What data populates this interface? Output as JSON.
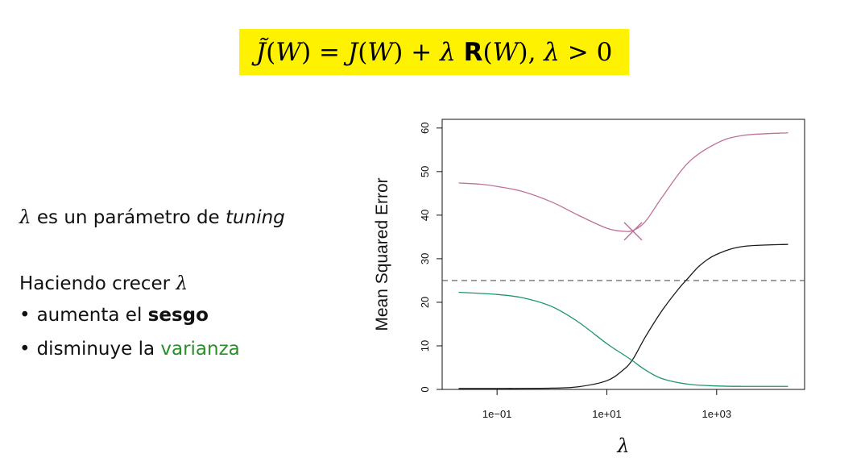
{
  "formula": {
    "tilde_j": "J̃",
    "w1": "W",
    "eq": " = ",
    "j": "J",
    "w2": "W",
    "plus": " + ",
    "lambda": "λ",
    "r": "R",
    "w3": "W",
    "tail": ", ",
    "lambda2": "λ",
    "gt": " > 0",
    "highlight_color": "#fff200"
  },
  "left_text": {
    "line1_lambda": "λ",
    "line1_text": " es un parámetro de ",
    "line1_italic": "tuning",
    "line2_text": "Haciendo crecer ",
    "line2_lambda": "λ",
    "bullet": "•",
    "bullet1_text": "aumenta el ",
    "bullet1_bold": "sesgo",
    "bullet2_text": "disminuye la ",
    "bullet2_green": "varianza",
    "green_color": "#2a8f2a"
  },
  "chart_data": {
    "type": "line",
    "xscale": "log",
    "xlim": [
      0.01,
      40000
    ],
    "ylim": [
      0,
      62
    ],
    "ylabel": "Mean Squared Error",
    "xlabel": "λ",
    "x_ticks": [
      0.1,
      10,
      1000
    ],
    "x_tick_labels": [
      "1e−01",
      "1e+01",
      "1e+03"
    ],
    "y_ticks": [
      0,
      10,
      20,
      30,
      40,
      50,
      60
    ],
    "y_tick_labels": [
      "0",
      "10",
      "20",
      "30",
      "40",
      "50",
      "60"
    ],
    "hline": {
      "y": 25,
      "style": "dashed",
      "color": "#555555"
    },
    "series": [
      {
        "color": "#c0709a",
        "x": [
          0.02,
          0.05,
          0.1,
          0.3,
          1,
          3,
          10,
          20,
          30,
          50,
          100,
          300,
          1000,
          3000,
          20000
        ],
        "y": [
          47.4,
          47.1,
          46.6,
          45.4,
          43.0,
          40.0,
          37.0,
          36.3,
          36.5,
          38.5,
          44.0,
          52.0,
          56.5,
          58.3,
          58.9
        ]
      },
      {
        "color": "#1a1a1a",
        "x": [
          0.02,
          0.1,
          1,
          3,
          10,
          20,
          30,
          50,
          100,
          200,
          300,
          500,
          1000,
          3000,
          20000
        ],
        "y": [
          0.2,
          0.2,
          0.3,
          0.6,
          2.0,
          4.5,
          7.0,
          12.0,
          18.0,
          23.0,
          25.5,
          28.5,
          31.0,
          32.8,
          33.3
        ]
      },
      {
        "color": "#1f9470",
        "x": [
          0.02,
          0.1,
          0.3,
          1,
          3,
          10,
          20,
          30,
          50,
          100,
          300,
          1000,
          3000,
          20000
        ],
        "y": [
          22.3,
          21.8,
          21.0,
          19.0,
          15.5,
          10.5,
          8.0,
          6.5,
          4.5,
          2.5,
          1.2,
          0.8,
          0.7,
          0.7
        ]
      }
    ],
    "marker": {
      "x": 30,
      "y": 36.3,
      "shape": "x",
      "color": "#c0709a"
    }
  }
}
